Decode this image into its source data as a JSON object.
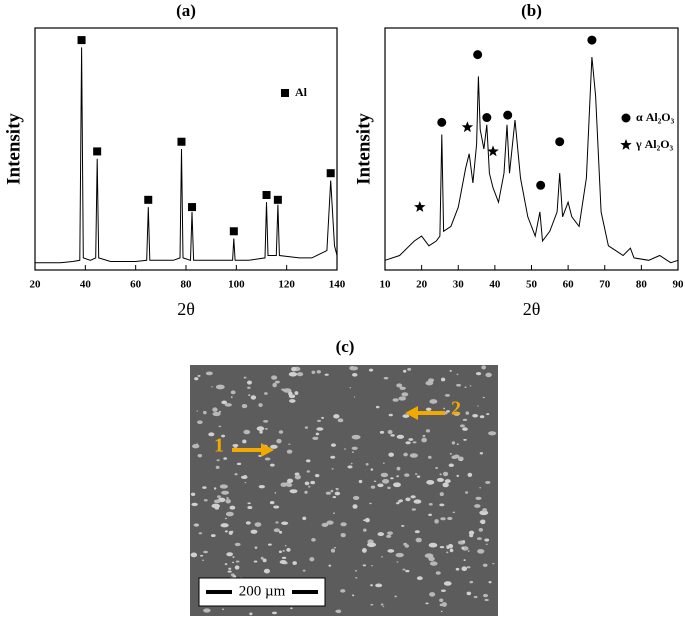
{
  "chart_data": [
    {
      "type": "line",
      "title": "(a)",
      "xlabel": "2θ",
      "ylabel": "Intensity",
      "xlim": [
        20,
        140
      ],
      "xticks": [
        20,
        40,
        60,
        80,
        100,
        120,
        140
      ],
      "ylim": [
        0,
        100
      ],
      "legend": "right",
      "series": [
        {
          "color": "#000000",
          "x": [
            20,
            25,
            30,
            35,
            37.8,
            38.5,
            39.2,
            42,
            44.1,
            44.7,
            45.3,
            50,
            55,
            60,
            64.4,
            65,
            65.6,
            70,
            75,
            77.6,
            78.2,
            78.8,
            81.8,
            82.4,
            83,
            90,
            98.5,
            99,
            99.5,
            105,
            111.4,
            112,
            112.6,
            115.9,
            116.5,
            117.1,
            125,
            130,
            136,
            137.5,
            139,
            140
          ],
          "values": [
            3,
            3,
            3,
            3.5,
            4,
            92,
            5,
            4,
            5,
            46,
            5,
            3.5,
            3.5,
            3.5,
            4,
            26,
            4,
            4,
            4,
            5,
            50,
            5,
            4,
            24,
            4,
            4,
            4,
            13,
            4,
            4,
            5,
            28,
            6,
            6,
            27,
            6,
            5,
            5,
            8,
            37,
            10,
            6
          ]
        },
        {
          "name": "Al",
          "marker": "square",
          "color": "#000000",
          "x": [
            38.5,
            44.7,
            65,
            78.2,
            82.4,
            99,
            112,
            116.5,
            137.5
          ],
          "values": [
            95,
            49,
            29,
            53,
            26,
            16,
            31,
            29,
            40
          ]
        }
      ]
    },
    {
      "type": "line",
      "title": "(b)",
      "xlabel": "2θ",
      "ylabel": "Intensity",
      "xlim": [
        10,
        90
      ],
      "xticks": [
        10,
        20,
        30,
        40,
        50,
        60,
        70,
        80,
        90
      ],
      "ylim": [
        0,
        100
      ],
      "legend": "upper right",
      "series": [
        {
          "color": "#000000",
          "x": [
            10,
            14,
            18,
            20,
            22,
            24,
            25,
            25.5,
            26,
            28,
            30,
            32,
            33,
            34,
            35,
            35.5,
            36,
            37,
            37.8,
            38.5,
            39.5,
            41,
            42.5,
            43.3,
            44,
            45.5,
            47,
            49,
            51,
            52.3,
            53,
            55,
            57,
            57.7,
            58.5,
            60,
            61,
            63,
            65,
            66.5,
            67.5,
            69,
            71,
            73,
            75,
            77,
            78,
            82,
            85,
            88,
            90
          ],
          "values": [
            4,
            6,
            12,
            14,
            10,
            12,
            14,
            56,
            16,
            18,
            26,
            42,
            48,
            36,
            52,
            80,
            58,
            50,
            60,
            40,
            34,
            28,
            40,
            60,
            40,
            62,
            38,
            22,
            14,
            24,
            12,
            16,
            24,
            40,
            22,
            28,
            22,
            18,
            38,
            88,
            72,
            24,
            10,
            8,
            6,
            9,
            5,
            4,
            6,
            3,
            4
          ]
        },
        {
          "name": "α Al₂O₃",
          "marker": "circle",
          "color": "#000000",
          "x": [
            25.5,
            35.3,
            37.8,
            43.5,
            52.5,
            57.7,
            66.5
          ],
          "values": [
            61,
            89,
            63,
            64,
            35,
            53,
            95
          ]
        },
        {
          "name": "γ Al₂O₃",
          "marker": "star",
          "color": "#000000",
          "x": [
            19.5,
            32.5,
            39.5
          ],
          "values": [
            26,
            59,
            49
          ]
        }
      ]
    }
  ],
  "image_panel": {
    "label": "(c)",
    "annotations": [
      "1",
      "2"
    ],
    "scale_bar": "200 µm"
  }
}
